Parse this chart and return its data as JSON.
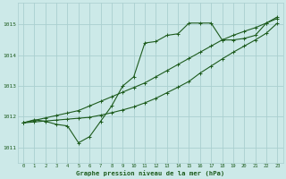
{
  "background_color": "#cce9e8",
  "grid_color": "#aacfcf",
  "line_color": "#1e5c1e",
  "xlabel": "Graphe pression niveau de la mer (hPa)",
  "xlabel_color": "#1e5c1e",
  "ylabel_ticks": [
    1011,
    1012,
    1013,
    1014,
    1015
  ],
  "xlim": [
    -0.5,
    23.5
  ],
  "ylim": [
    1010.5,
    1015.7
  ],
  "xtick_labels": [
    "0",
    "1",
    "2",
    "3",
    "4",
    "5",
    "6",
    "7",
    "8",
    "9",
    "10",
    "11",
    "12",
    "13",
    "14",
    "15",
    "16",
    "17",
    "18",
    "19",
    "20",
    "21",
    "22",
    "23"
  ],
  "series1": [
    1011.8,
    1011.9,
    1011.85,
    1011.75,
    1011.7,
    1011.15,
    1011.35,
    1011.85,
    1012.35,
    1013.0,
    1013.3,
    1014.4,
    1014.45,
    1014.65,
    1014.7,
    1015.05,
    1015.05,
    1015.05,
    1014.5,
    1014.5,
    1014.55,
    1014.65,
    1015.05,
    1015.25
  ],
  "series2": [
    1011.8,
    1011.88,
    1011.96,
    1012.04,
    1012.12,
    1012.2,
    1012.35,
    1012.5,
    1012.65,
    1012.8,
    1012.95,
    1013.1,
    1013.3,
    1013.5,
    1013.7,
    1013.9,
    1014.1,
    1014.3,
    1014.5,
    1014.65,
    1014.78,
    1014.9,
    1015.05,
    1015.2
  ],
  "series3": [
    1011.8,
    1011.83,
    1011.86,
    1011.89,
    1011.92,
    1011.95,
    1011.98,
    1012.05,
    1012.13,
    1012.22,
    1012.32,
    1012.45,
    1012.6,
    1012.78,
    1012.96,
    1013.15,
    1013.42,
    1013.65,
    1013.88,
    1014.1,
    1014.3,
    1014.5,
    1014.72,
    1015.05
  ]
}
